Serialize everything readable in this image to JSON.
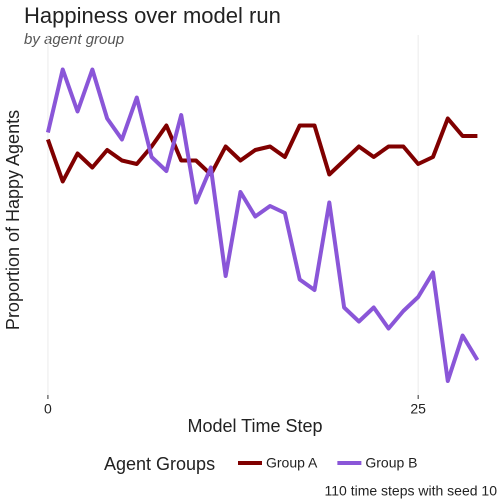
{
  "chart_data": {
    "type": "line",
    "title": "Happiness over model run",
    "subtitle": "by agent group",
    "x_label": "Model Time Step",
    "y_label": "Proportion of Happy Agents",
    "legend_title": "Agent Groups",
    "caption": "110 time steps with seed 10",
    "legend": "bottom",
    "grid": true,
    "x": [
      0,
      1,
      2,
      3,
      4,
      5,
      6,
      7,
      8,
      9,
      10,
      11,
      12,
      13,
      14,
      15,
      16,
      17,
      18,
      19,
      20,
      21,
      22,
      23,
      24,
      25,
      26,
      27,
      28,
      29
    ],
    "series": [
      {
        "name": "Group A",
        "color": "#800000",
        "values": [
          0.73,
          0.61,
          0.69,
          0.65,
          0.7,
          0.67,
          0.66,
          0.71,
          0.77,
          0.67,
          0.67,
          0.63,
          0.71,
          0.67,
          0.7,
          0.71,
          0.68,
          0.77,
          0.77,
          0.63,
          0.67,
          0.71,
          0.68,
          0.71,
          0.71,
          0.66,
          0.68,
          0.79,
          0.74,
          0.74
        ]
      },
      {
        "name": "Group B",
        "color": "#8a56d8",
        "values": [
          0.75,
          0.93,
          0.81,
          0.93,
          0.79,
          0.73,
          0.85,
          0.68,
          0.64,
          0.8,
          0.55,
          0.65,
          0.34,
          0.58,
          0.51,
          0.54,
          0.52,
          0.33,
          0.3,
          0.55,
          0.25,
          0.21,
          0.25,
          0.19,
          0.24,
          0.28,
          0.35,
          0.04,
          0.17,
          0.1
        ]
      }
    ],
    "xlim": [
      -1.75,
      29.85
    ],
    "xticks": [
      0,
      25
    ],
    "ylim": [
      0,
      1
    ]
  }
}
